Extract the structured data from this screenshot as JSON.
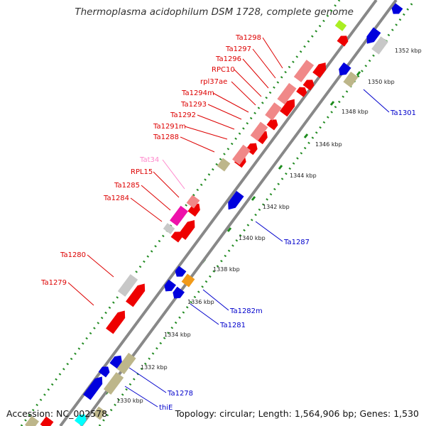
{
  "title": "Thermoplasma acidophilum DSM 1728, complete genome",
  "footer": {
    "accession": "Accession: NC_002578",
    "info": "Topology: circular; Length: 1,564,906 bp; Genes: 1,530"
  },
  "colors": {
    "forward_gene": "#ee0000",
    "reverse_gene": "#0000dd",
    "pseudo_gene": "#c8c8c8",
    "rna_gene": "#bdb68a",
    "trna_gene": "#ee11aa",
    "backbone": "#888888",
    "tick_dots": "#228b22",
    "forward_label": "#dd0000",
    "reverse_label": "#0000cc",
    "trna_label": "#ff88cc"
  },
  "scale_ticks": [
    "1352 kbp",
    "1350 kbp",
    "1348 kbp",
    "1346 kbp",
    "1344 kbp",
    "1342 kbp",
    "1340 kbp",
    "1338 kbp",
    "1336 kbp",
    "1334 kbp",
    "1332 kbp",
    "1330 kbp"
  ],
  "forward_labels": [
    "Ta1298",
    "Ta1297",
    "Ta1296",
    "RPC10",
    "rpl37ae",
    "Ta1294m",
    "Ta1293",
    "Ta1292",
    "Ta1291m",
    "Ta1288",
    "Tat34",
    "RPL15",
    "Ta1285",
    "Ta1284",
    "Ta1280",
    "Ta1279"
  ],
  "reverse_labels": [
    "Ta1301",
    "Ta1287",
    "Ta1282m",
    "Ta1281",
    "Ta1278",
    "thiE"
  ]
}
